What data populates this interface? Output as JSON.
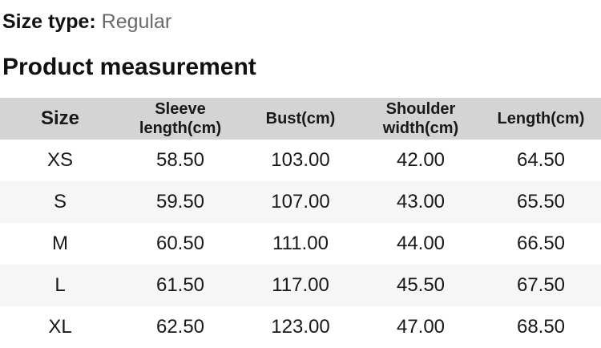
{
  "page": {
    "size_type_label": "Size type:",
    "size_type_value": "Regular",
    "section_title": "Product measurement"
  },
  "table": {
    "headers": [
      "Size",
      "Sleeve length(cm)",
      "Bust(cm)",
      "Shoulder width(cm)",
      "Length(cm)"
    ],
    "rows": [
      [
        "XS",
        "58.50",
        "103.00",
        "42.00",
        "64.50"
      ],
      [
        "S",
        "59.50",
        "107.00",
        "43.00",
        "65.50"
      ],
      [
        "M",
        "60.50",
        "111.00",
        "44.00",
        "66.50"
      ],
      [
        "L",
        "61.50",
        "117.00",
        "45.50",
        "67.50"
      ],
      [
        "XL",
        "62.50",
        "123.00",
        "47.00",
        "68.50"
      ]
    ]
  },
  "colors": {
    "header_bg": "#d4d4d4",
    "stripe_bg": "#f6f6f6",
    "text": "#191919",
    "muted_text": "#6a6a6a"
  }
}
